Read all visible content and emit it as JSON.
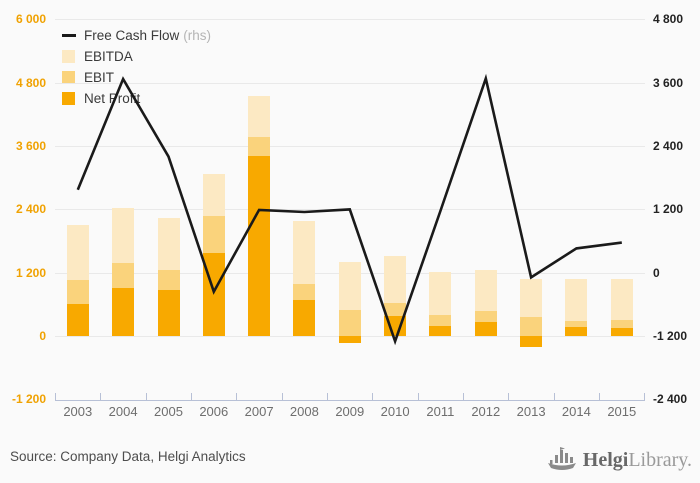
{
  "chart_data": {
    "type": "bar",
    "title": "",
    "categories": [
      "2003",
      "2004",
      "2005",
      "2006",
      "2007",
      "2008",
      "2009",
      "2010",
      "2011",
      "2012",
      "2013",
      "2014",
      "2015"
    ],
    "series": [
      {
        "name": "EBITDA",
        "color": "#fce9c3",
        "values": [
          2100,
          2420,
          2230,
          3060,
          4540,
          2180,
          1400,
          1520,
          1210,
          1250,
          1070,
          1080,
          1070
        ]
      },
      {
        "name": "EBIT",
        "color": "#fad37c",
        "values": [
          1060,
          1380,
          1240,
          2260,
          3770,
          990,
          490,
          620,
          390,
          460,
          350,
          280,
          290
        ]
      },
      {
        "name": "Net Profit",
        "color": "#f8a900",
        "values": [
          610,
          910,
          860,
          1570,
          3400,
          680,
          -140,
          370,
          190,
          270,
          -220,
          160,
          150
        ]
      }
    ],
    "line_series": {
      "name": "Free Cash Flow",
      "rhs_label": "(rhs)",
      "axis": "right",
      "color": "#1a1a1a",
      "values": [
        1570,
        3670,
        2200,
        -360,
        1190,
        1150,
        1200,
        -1300,
        1170,
        3680,
        -90,
        460,
        570
      ]
    },
    "bar_style": "overlapped-from-zero",
    "grid": "horizontal",
    "legend_position": "top-left",
    "left_axis": {
      "min": -1200,
      "max": 6000,
      "step": 1200,
      "tick_labels": [
        "6 000",
        "4 800",
        "3 600",
        "2 400",
        "1 200",
        "0",
        "-1 200"
      ]
    },
    "right_axis": {
      "min": -2400,
      "max": 4800,
      "step": 1200,
      "tick_labels": [
        "4 800",
        "3 600",
        "2 400",
        "1 200",
        "0",
        "-1 200",
        "-2 400"
      ]
    }
  },
  "palette": {
    "background": "#fafafa",
    "gridline": "#e9e9e9",
    "axis_line": "#b7c0d6",
    "left_label_color": "#f0a202",
    "right_label_color": "#222222",
    "x_label_color": "#6e6e6e"
  },
  "footer": {
    "source": "Source: Company Data, Helgi Analytics",
    "logo_part_bold": "Helgi",
    "logo_part_light": "Library."
  }
}
